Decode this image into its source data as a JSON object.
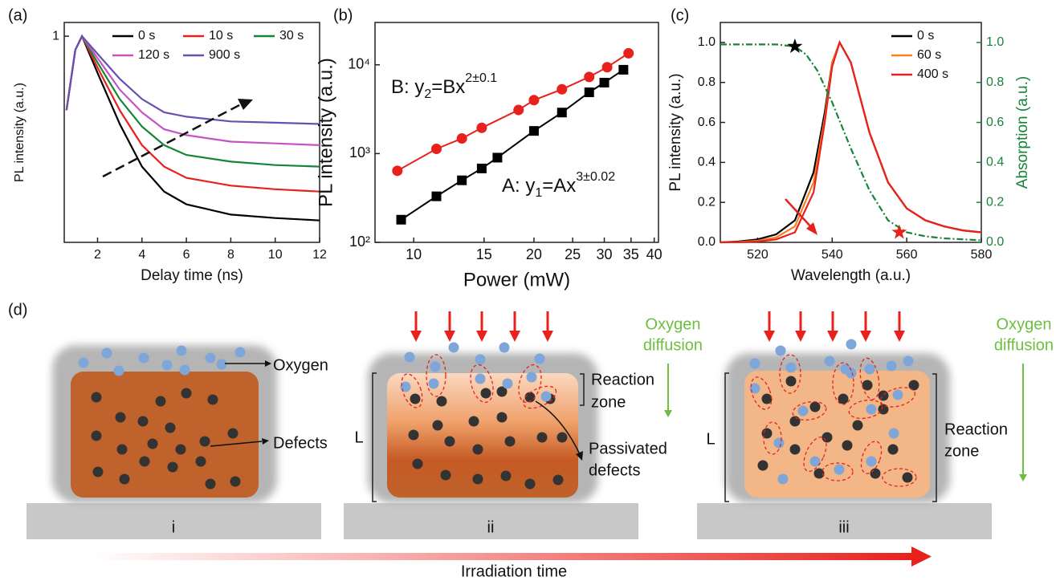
{
  "chart_data": [
    {
      "type": "line",
      "panel_label": "(a)",
      "xlabel": "Delay time (ns)",
      "ylabel": "PL intensity (a.u.)",
      "x": [
        0.6,
        1.0,
        1.3,
        2,
        3,
        4,
        5,
        6,
        8,
        10,
        12
      ],
      "xlim": [
        0.5,
        12
      ],
      "xticks": [
        2,
        4,
        6,
        8,
        10,
        12
      ],
      "ylog": true,
      "ylim": [
        0.035,
        1.25
      ],
      "yticks": [
        1
      ],
      "legend": "top-right",
      "series": [
        {
          "name": "0 s",
          "color": "#000000",
          "values": [
            0.3,
            0.8,
            1,
            0.55,
            0.24,
            0.12,
            0.08,
            0.065,
            0.055,
            0.052,
            0.05
          ]
        },
        {
          "name": "10 s",
          "color": "#e8211d",
          "values": [
            0.3,
            0.8,
            1,
            0.6,
            0.3,
            0.17,
            0.12,
            0.1,
            0.088,
            0.083,
            0.08
          ]
        },
        {
          "name": "30 s",
          "color": "#17843a",
          "values": [
            0.3,
            0.8,
            1,
            0.65,
            0.36,
            0.23,
            0.17,
            0.145,
            0.13,
            0.123,
            0.12
          ]
        },
        {
          "name": "120 s",
          "color": "#c653c6",
          "values": [
            0.3,
            0.8,
            1,
            0.7,
            0.42,
            0.29,
            0.22,
            0.2,
            0.18,
            0.175,
            0.17
          ]
        },
        {
          "name": "900 s",
          "color": "#6a4fb0",
          "values": [
            0.3,
            0.8,
            1,
            0.75,
            0.5,
            0.36,
            0.29,
            0.27,
            0.25,
            0.245,
            0.24
          ]
        }
      ]
    },
    {
      "type": "scatter",
      "panel_label": "(b)",
      "xlabel": "Power (mW)",
      "ylabel": "PL intensity (a.u.)",
      "xlog": true,
      "xlim": [
        8,
        41
      ],
      "xticks": [
        10,
        15,
        20,
        25,
        30,
        35,
        40
      ],
      "ylog": true,
      "ylim": [
        100,
        30000
      ],
      "yticks": [
        {
          "value": 100,
          "label": "10²"
        },
        {
          "value": 1000,
          "label": "10³"
        },
        {
          "value": 10000,
          "label": "10⁴"
        }
      ],
      "fit_lines": true,
      "series": [
        {
          "marker": "square",
          "color": "#000000",
          "x": [
            9.3,
            11.4,
            13.2,
            14.8,
            16.2,
            20,
            23.5,
            27.5,
            30,
            33.5
          ],
          "values": [
            180,
            330,
            500,
            680,
            900,
            1800,
            2900,
            4900,
            6300,
            8800
          ]
        },
        {
          "marker": "circle",
          "color": "#e8211d",
          "x": [
            9.1,
            11.4,
            13.2,
            14.8,
            18.3,
            20,
            23.5,
            27.5,
            30.5,
            34.5
          ],
          "values": [
            640,
            1130,
            1480,
            1950,
            3100,
            4000,
            5300,
            7300,
            9400,
            13500
          ]
        }
      ],
      "annotations": [
        {
          "text": "B: y",
          "sub": "2",
          "mid": "=Bx",
          "sup": "2±0.1"
        },
        {
          "text": "A: y",
          "sub": "1",
          "mid": "=Ax",
          "sup": "3±0.02"
        }
      ]
    },
    {
      "type": "line",
      "panel_label": "(c)",
      "xlabel": "Wavelength (a.u.)",
      "ylabel": "PL intensity (a.u.)",
      "y2label": "Absorption (a.u.)",
      "x": [
        510,
        515,
        520,
        525,
        530,
        535,
        538,
        540,
        542,
        545,
        550,
        555,
        560,
        565,
        570,
        575,
        580
      ],
      "xlim": [
        510,
        580
      ],
      "xticks": [
        520,
        540,
        560,
        580
      ],
      "ylim": [
        0,
        1.1
      ],
      "yticks": [
        {
          "value": 0,
          "label": "0.0"
        },
        0.2,
        0.4,
        0.6,
        0.8,
        {
          "value": 1,
          "label": "1.0"
        }
      ],
      "y2lim": [
        0,
        1.1
      ],
      "y2ticks": [
        {
          "value": 0,
          "label": "0.0"
        },
        0.2,
        0.4,
        0.6,
        0.8,
        {
          "value": 1,
          "label": "1.0"
        }
      ],
      "y2color": "#17843a",
      "legend": "top-right",
      "series": [
        {
          "name": "0 s",
          "color": "#000000",
          "values": [
            0,
            0.005,
            0.015,
            0.04,
            0.11,
            0.35,
            0.65,
            0.9,
            1.0,
            0.9,
            0.55,
            0.3,
            0.17,
            0.11,
            0.08,
            0.06,
            0.05
          ]
        },
        {
          "name": "60 s",
          "color": "#f58220",
          "values": [
            0,
            0.002,
            0.008,
            0.025,
            0.08,
            0.3,
            0.62,
            0.9,
            1.0,
            0.9,
            0.55,
            0.3,
            0.17,
            0.11,
            0.08,
            0.06,
            0.05
          ]
        },
        {
          "name": "400 s",
          "color": "#e8211d",
          "values": [
            0,
            0.001,
            0.004,
            0.015,
            0.05,
            0.25,
            0.6,
            0.88,
            1.0,
            0.9,
            0.55,
            0.3,
            0.17,
            0.11,
            0.08,
            0.06,
            0.05
          ]
        },
        {
          "axis": "y2",
          "color": "#17843a",
          "linestyle": "dash-dot",
          "x": [
            510,
            520,
            525,
            530,
            533,
            536,
            540,
            545,
            550,
            555,
            560,
            565,
            570,
            580
          ],
          "values": [
            0.99,
            0.99,
            0.99,
            0.98,
            0.94,
            0.86,
            0.7,
            0.47,
            0.26,
            0.11,
            0.05,
            0.03,
            0.02,
            0.01
          ]
        }
      ],
      "stars": [
        {
          "x": 530,
          "y": 0.98,
          "color": "#000000"
        },
        {
          "x": 558,
          "y": 0.05,
          "color": "#e8211d"
        }
      ]
    }
  ],
  "diagram": {
    "panel_label": "(d)",
    "time_axis": "Irradiation time",
    "stages": [
      {
        "label": "i",
        "oxygen": "Oxygen",
        "defects": "Defects"
      },
      {
        "label": "ii",
        "reaction_zone": [
          "Reaction",
          "zone"
        ],
        "length": "L",
        "passivated": [
          "Passivated",
          "defects"
        ],
        "oxygen_diffusion": [
          "Oxygen",
          "diffusion"
        ]
      },
      {
        "label": "iii",
        "reaction_zone": [
          "Reaction",
          "zone"
        ],
        "length": "L",
        "oxygen_diffusion": [
          "Oxygen",
          "diffusion"
        ]
      }
    ]
  }
}
